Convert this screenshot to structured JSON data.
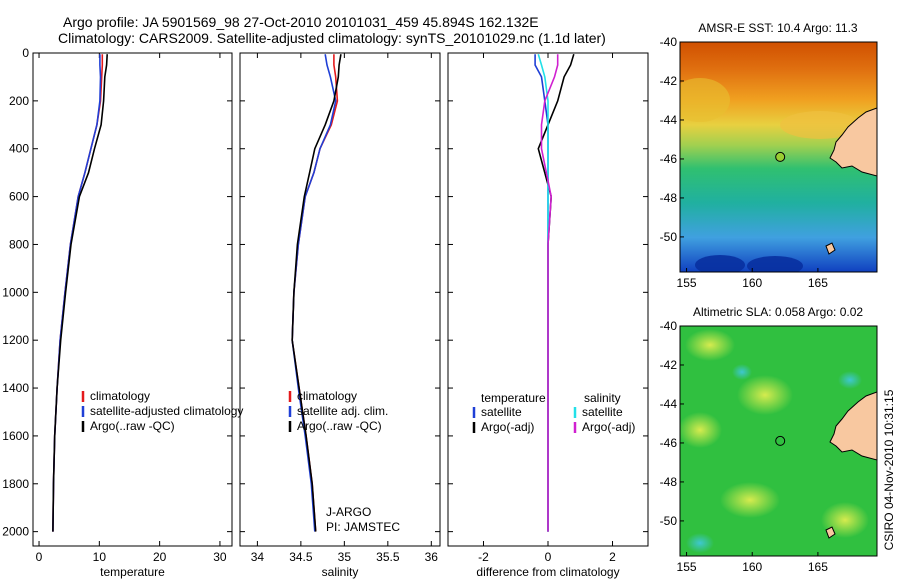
{
  "header": {
    "line1": "Argo profile: JA 5901569_98 27-Oct-2010 20101031_459 45.894S 162.132E",
    "line2": "Climatology: CARS2009. Satellite-adjusted climatology: synTS_20101029.nc (1.1d later)"
  },
  "colors": {
    "clim": "#e41a1c",
    "sat": "#1f3fd6",
    "argo": "#000000",
    "sat_sal": "#22e0e8",
    "argo_sal": "#d020d0",
    "land": "#f8c8a0",
    "float_marker": "#9acd32"
  },
  "chart_data": [
    {
      "type": "line",
      "id": "temperature",
      "xlabel": "temperature",
      "ylabel": "",
      "xlim": [
        -1,
        32
      ],
      "ylim": [
        2060,
        0
      ],
      "xticks": [
        0,
        10,
        20,
        30
      ],
      "xticklabels": [
        "0",
        "10",
        "20",
        "30"
      ],
      "yticks": [
        0,
        200,
        400,
        600,
        800,
        1000,
        1200,
        1400,
        1600,
        1800,
        2000
      ],
      "yticklabels": [
        "0",
        "200",
        "400",
        "600",
        "800",
        "1000",
        "1200",
        "1400",
        "1600",
        "1800",
        "2000"
      ],
      "legend": [
        "climatology",
        "satellite-adjusted climatology",
        "Argo(..raw -QC)"
      ],
      "series": [
        {
          "name": "climatology",
          "color": "clim",
          "x": [
            10.5,
            10.5,
            10.4,
            10.2,
            9.6,
            8.6,
            7.6,
            6.5,
            5.2,
            4.3,
            3.5,
            3.0,
            2.6,
            2.4,
            2.3
          ],
          "y": [
            5,
            50,
            100,
            200,
            300,
            400,
            500,
            600,
            800,
            1000,
            1200,
            1400,
            1600,
            1800,
            2000
          ]
        },
        {
          "name": "satellite-adjusted climatology",
          "color": "sat",
          "x": [
            10.1,
            10.1,
            10.2,
            10.1,
            9.6,
            8.6,
            7.6,
            6.5,
            5.2,
            4.3,
            3.5,
            3.0,
            2.6,
            2.4,
            2.3
          ],
          "y": [
            5,
            50,
            100,
            200,
            300,
            400,
            500,
            600,
            800,
            1000,
            1200,
            1400,
            1600,
            1800,
            2000
          ]
        },
        {
          "name": "Argo(..raw -QC)",
          "color": "argo",
          "x": [
            11.3,
            11.2,
            10.9,
            10.7,
            10.3,
            9.2,
            8.2,
            6.7,
            5.3,
            4.4,
            3.6,
            3.0,
            2.6,
            2.4,
            2.3
          ],
          "y": [
            5,
            50,
            100,
            200,
            300,
            400,
            500,
            600,
            800,
            1000,
            1200,
            1400,
            1600,
            1800,
            2000
          ]
        }
      ]
    },
    {
      "type": "line",
      "id": "salinity",
      "xlabel": "salinity",
      "xlim": [
        33.8,
        36.1
      ],
      "ylim": [
        2060,
        0
      ],
      "xticks": [
        34,
        34.5,
        35,
        35.5,
        36
      ],
      "xticklabels": [
        "34",
        "34.5",
        "35",
        "35.5",
        "36"
      ],
      "legend": [
        "climatology",
        "satellite adj. clim.",
        "Argo(..raw -QC)"
      ],
      "annotation": [
        "J-ARGO",
        "PI: JAMSTEC"
      ],
      "series": [
        {
          "name": "climatology",
          "color": "clim",
          "x": [
            34.88,
            34.88,
            34.9,
            34.92,
            34.85,
            34.72,
            34.65,
            34.55,
            34.47,
            34.42,
            34.4,
            34.48,
            34.56,
            34.63,
            34.67
          ],
          "y": [
            5,
            50,
            100,
            200,
            300,
            400,
            500,
            600,
            800,
            1000,
            1200,
            1400,
            1600,
            1800,
            2000
          ]
        },
        {
          "name": "satellite adj. clim.",
          "color": "sat",
          "x": [
            34.78,
            34.8,
            34.84,
            34.9,
            34.84,
            34.72,
            34.65,
            34.55,
            34.47,
            34.42,
            34.4,
            34.47,
            34.55,
            34.62,
            34.66
          ],
          "y": [
            5,
            50,
            100,
            200,
            300,
            400,
            500,
            600,
            800,
            1000,
            1200,
            1400,
            1600,
            1800,
            2000
          ]
        },
        {
          "name": "Argo(..raw -QC)",
          "color": "argo",
          "x": [
            34.96,
            34.94,
            34.93,
            34.88,
            34.78,
            34.66,
            34.6,
            34.54,
            34.46,
            34.42,
            34.4,
            34.48,
            34.56,
            34.63,
            34.67
          ],
          "y": [
            5,
            50,
            100,
            200,
            300,
            400,
            500,
            600,
            800,
            1000,
            1200,
            1400,
            1600,
            1800,
            2000
          ]
        }
      ]
    },
    {
      "type": "line",
      "id": "difference",
      "xlabel": "difference from climatology",
      "xlim": [
        -3.1,
        3.1
      ],
      "ylim": [
        2060,
        0
      ],
      "xticks": [
        -2,
        0,
        2
      ],
      "xticklabels": [
        "-2",
        "0",
        "2"
      ],
      "legend_temperature": {
        "title": "temperature",
        "entries": [
          "satellite",
          "Argo(-adj)"
        ]
      },
      "legend_salinity": {
        "title": "salinity",
        "entries": [
          "satellite",
          "Argo(-adj)"
        ]
      },
      "series": [
        {
          "name": "temperature satellite",
          "color": "sat",
          "x": [
            -0.4,
            -0.4,
            -0.2,
            -0.1,
            0,
            0,
            0,
            0,
            0,
            0,
            0
          ],
          "y": [
            5,
            50,
            100,
            200,
            300,
            400,
            600,
            800,
            1200,
            1600,
            2000
          ]
        },
        {
          "name": "temperature Argo(-adj)",
          "color": "argo",
          "x": [
            0.8,
            0.7,
            0.5,
            0.3,
            0.0,
            -0.3,
            0.1,
            0.0,
            0.0,
            0.0,
            0.0
          ],
          "y": [
            5,
            50,
            100,
            200,
            300,
            400,
            600,
            800,
            1200,
            1600,
            2000
          ]
        },
        {
          "name": "salinity satellite",
          "color": "sat_sal",
          "x": [
            -0.3,
            -0.2,
            -0.1,
            0.0,
            0.0,
            0.0,
            0.0,
            0.0,
            0.0,
            0.0,
            0.0
          ],
          "y": [
            5,
            50,
            100,
            200,
            300,
            400,
            600,
            800,
            1200,
            1600,
            2000
          ]
        },
        {
          "name": "salinity Argo(-adj)",
          "color": "argo_sal",
          "x": [
            0.3,
            0.3,
            0.2,
            -0.1,
            -0.2,
            -0.2,
            0.1,
            0.0,
            0.0,
            0.0,
            0.0
          ],
          "y": [
            5,
            50,
            100,
            200,
            300,
            400,
            600,
            800,
            1200,
            1600,
            2000
          ]
        }
      ]
    },
    {
      "type": "heatmap",
      "id": "sst_map",
      "title": "AMSR-E SST: 10.4 Argo: 11.3",
      "xlim": [
        154.5,
        169.5
      ],
      "ylim": [
        -51.8,
        -40
      ],
      "xticks": [
        155,
        160,
        165
      ],
      "xticklabels": [
        "155",
        "160",
        "165"
      ],
      "yticks": [
        -40,
        -42,
        -44,
        -46,
        -48,
        -50
      ],
      "yticklabels": [
        "-40",
        "-42",
        "-44",
        "-46",
        "-48",
        "-50"
      ],
      "float_position": [
        162.132,
        -45.894
      ]
    },
    {
      "type": "heatmap",
      "id": "sla_map",
      "title": "Altimetric SLA: 0.058 Argo: 0.02",
      "xlim": [
        154.5,
        169.5
      ],
      "ylim": [
        -51.8,
        -40
      ],
      "xticks": [
        155,
        160,
        165
      ],
      "xticklabels": [
        "155",
        "160",
        "165"
      ],
      "yticks": [
        -40,
        -42,
        -44,
        -46,
        -48,
        -50
      ],
      "yticklabels": [
        "-40",
        "-42",
        "-44",
        "-46",
        "-48",
        "-50"
      ],
      "float_position": [
        162.132,
        -45.894
      ]
    }
  ],
  "footer": {
    "credit": "CSIRO 04-Nov-2010 10:31:15"
  }
}
